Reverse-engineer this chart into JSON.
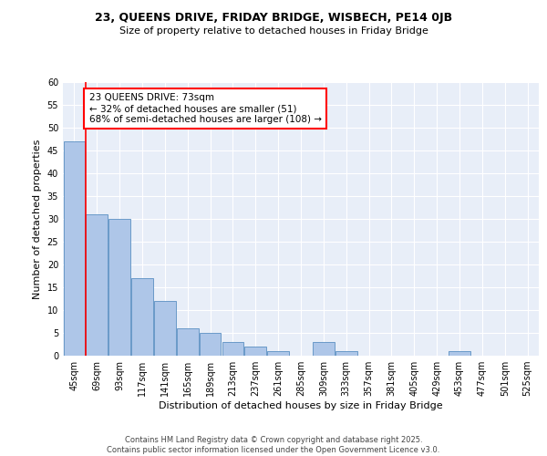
{
  "title1": "23, QUEENS DRIVE, FRIDAY BRIDGE, WISBECH, PE14 0JB",
  "title2": "Size of property relative to detached houses in Friday Bridge",
  "xlabel": "Distribution of detached houses by size in Friday Bridge",
  "ylabel": "Number of detached properties",
  "categories": [
    "45sqm",
    "69sqm",
    "93sqm",
    "117sqm",
    "141sqm",
    "165sqm",
    "189sqm",
    "213sqm",
    "237sqm",
    "261sqm",
    "285sqm",
    "309sqm",
    "333sqm",
    "357sqm",
    "381sqm",
    "405sqm",
    "429sqm",
    "453sqm",
    "477sqm",
    "501sqm",
    "525sqm"
  ],
  "values": [
    47,
    31,
    30,
    17,
    12,
    6,
    5,
    3,
    2,
    1,
    0,
    3,
    1,
    0,
    0,
    0,
    0,
    1,
    0,
    0,
    0
  ],
  "bar_color": "#aec6e8",
  "bar_edge_color": "#5a8fc2",
  "vline_color": "red",
  "annotation_text": "23 QUEENS DRIVE: 73sqm\n← 32% of detached houses are smaller (51)\n68% of semi-detached houses are larger (108) →",
  "annotation_box_color": "white",
  "annotation_box_edge": "red",
  "ylim": [
    0,
    60
  ],
  "yticks": [
    0,
    5,
    10,
    15,
    20,
    25,
    30,
    35,
    40,
    45,
    50,
    55,
    60
  ],
  "background_color": "#e8eef8",
  "grid_color": "white",
  "footer": "Contains HM Land Registry data © Crown copyright and database right 2025.\nContains public sector information licensed under the Open Government Licence v3.0.",
  "title1_fontsize": 9,
  "title2_fontsize": 8,
  "xlabel_fontsize": 8,
  "ylabel_fontsize": 8,
  "tick_fontsize": 7,
  "annotation_fontsize": 7.5,
  "footer_fontsize": 6
}
